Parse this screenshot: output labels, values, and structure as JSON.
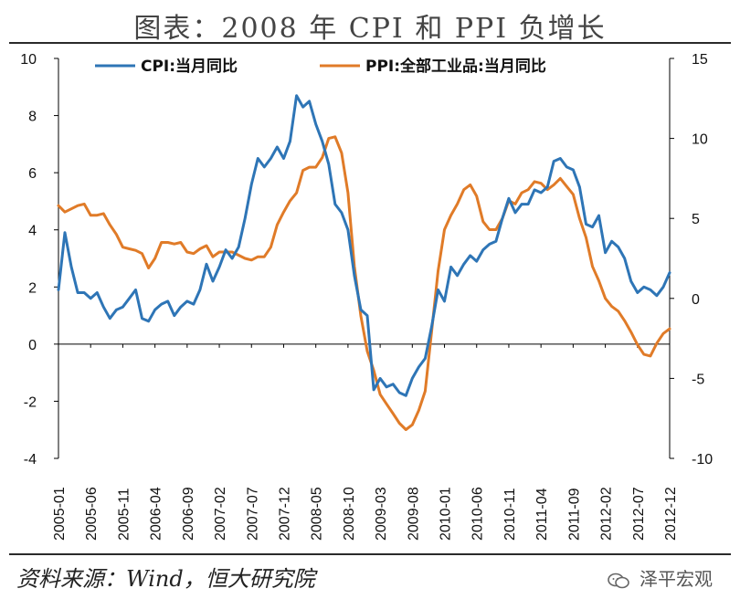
{
  "title": "图表：2008 年 CPI 和 PPI 负增长",
  "source": "资料来源：Wind，恒大研究院",
  "watermark": "泽平宏观",
  "chart_data": {
    "type": "line",
    "x_tick_labels": [
      "2005-01",
      "2005-06",
      "2005-11",
      "2006-04",
      "2006-09",
      "2007-02",
      "2007-07",
      "2007-12",
      "2008-05",
      "2008-10",
      "2009-03",
      "2009-08",
      "2010-01",
      "2010-06",
      "2010-11",
      "2011-04",
      "2011-09",
      "2012-02",
      "2012-07",
      "2012-12"
    ],
    "y_left": {
      "min": -4,
      "max": 10,
      "ticks": [
        10,
        8,
        6,
        4,
        2,
        0,
        -2,
        -4
      ]
    },
    "y_right": {
      "min": -10,
      "max": 15,
      "ticks": [
        15,
        10,
        5,
        0,
        -5,
        -10
      ]
    },
    "legend_placement": "top",
    "colors": {
      "cpi": "#2e75b6",
      "ppi": "#e07b28",
      "axis": "#000000"
    },
    "series": [
      {
        "name": "CPI:当月同比",
        "axis": "left",
        "color": "#2e75b6",
        "values": [
          1.9,
          3.9,
          2.7,
          1.8,
          1.8,
          1.6,
          1.8,
          1.3,
          0.9,
          1.2,
          1.3,
          1.6,
          1.9,
          0.9,
          0.8,
          1.2,
          1.4,
          1.5,
          1.0,
          1.3,
          1.5,
          1.4,
          1.9,
          2.8,
          2.2,
          2.7,
          3.3,
          3.0,
          3.4,
          4.4,
          5.6,
          6.5,
          6.2,
          6.5,
          6.9,
          6.5,
          7.1,
          8.7,
          8.3,
          8.5,
          7.7,
          7.1,
          6.3,
          4.9,
          4.6,
          4.0,
          2.4,
          1.2,
          1.0,
          -1.6,
          -1.2,
          -1.5,
          -1.4,
          -1.7,
          -1.8,
          -1.2,
          -0.8,
          -0.5,
          0.6,
          1.9,
          1.5,
          2.7,
          2.4,
          2.8,
          3.1,
          2.9,
          3.3,
          3.5,
          3.6,
          4.4,
          5.1,
          4.6,
          4.9,
          4.9,
          5.4,
          5.3,
          5.5,
          6.4,
          6.5,
          6.2,
          6.1,
          5.5,
          4.2,
          4.1,
          4.5,
          3.2,
          3.6,
          3.4,
          3.0,
          2.2,
          1.8,
          2.0,
          1.9,
          1.7,
          2.0,
          2.5
        ]
      },
      {
        "name": "PPI:全部工业品:当月同比",
        "axis": "right",
        "color": "#e07b28",
        "values": [
          5.8,
          5.4,
          5.6,
          5.8,
          5.9,
          5.2,
          5.2,
          5.3,
          4.6,
          4.0,
          3.2,
          3.1,
          3.0,
          2.8,
          1.9,
          2.5,
          3.5,
          3.5,
          3.4,
          3.5,
          2.9,
          2.8,
          3.1,
          3.3,
          2.6,
          2.9,
          2.9,
          2.9,
          2.7,
          2.5,
          2.4,
          2.6,
          2.6,
          3.2,
          4.6,
          5.4,
          6.1,
          6.6,
          8.0,
          8.2,
          8.2,
          8.8,
          10.0,
          10.1,
          9.1,
          6.6,
          2.0,
          -1.1,
          -3.3,
          -4.5,
          -6.0,
          -6.6,
          -7.2,
          -7.8,
          -8.2,
          -7.9,
          -7.0,
          -5.8,
          -2.1,
          1.7,
          4.3,
          5.2,
          5.9,
          6.8,
          7.1,
          6.4,
          4.8,
          4.3,
          4.3,
          5.0,
          6.1,
          5.9,
          6.6,
          6.8,
          7.3,
          7.2,
          6.8,
          7.1,
          7.5,
          7.0,
          6.5,
          5.0,
          3.8,
          2.0,
          1.1,
          0.0,
          -0.5,
          -0.8,
          -1.4,
          -2.1,
          -2.9,
          -3.5,
          -3.6,
          -2.8,
          -2.2,
          -1.9
        ]
      }
    ]
  }
}
